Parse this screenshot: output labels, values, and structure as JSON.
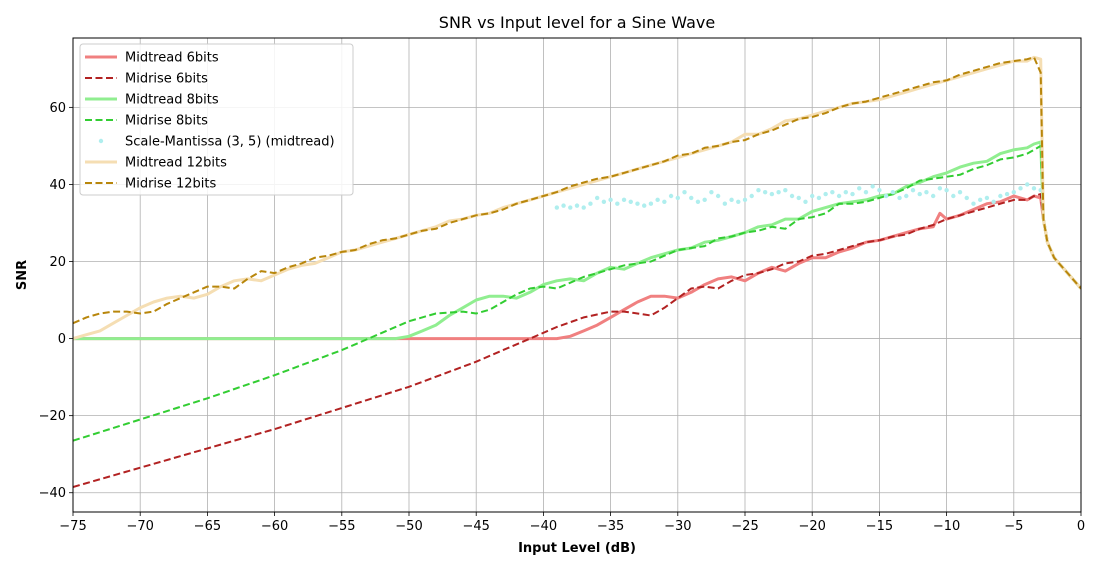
{
  "chart_data": {
    "type": "line",
    "title": "SNR vs Input level for a Sine Wave",
    "xlabel": "Input Level (dB)",
    "ylabel": "SNR",
    "xlim": [
      -75,
      0
    ],
    "ylim": [
      -45,
      78
    ],
    "xticks": [
      -75,
      -70,
      -65,
      -60,
      -55,
      -50,
      -45,
      -40,
      -35,
      -30,
      -25,
      -20,
      -15,
      -10,
      -5,
      0
    ],
    "xtick_labels": [
      "−75",
      "−70",
      "−65",
      "−60",
      "−55",
      "−50",
      "−45",
      "−40",
      "−35",
      "−30",
      "−25",
      "−20",
      "−15",
      "−10",
      "−5",
      "0"
    ],
    "yticks": [
      -40,
      -20,
      0,
      20,
      40,
      60
    ],
    "ytick_labels": [
      "−40",
      "−20",
      "0",
      "20",
      "40",
      "60"
    ],
    "grid": true,
    "legend_position": "top-left",
    "series": [
      {
        "name": "Midtread 6bits",
        "color": "#f08080",
        "style": "solid",
        "x": [
          -75,
          -60,
          -45,
          -40,
          -39,
          -38,
          -37,
          -36,
          -35,
          -34,
          -33,
          -32,
          -31,
          -30,
          -29,
          -28,
          -27,
          -26,
          -25,
          -24,
          -23,
          -22,
          -21,
          -20,
          -19,
          -18,
          -17,
          -16,
          -15,
          -14,
          -13,
          -12,
          -11,
          -10.5,
          -10,
          -9,
          -8,
          -7,
          -6,
          -5,
          -4,
          -3.5,
          -3,
          -2.8,
          -2.5,
          -2,
          -1.5,
          -1,
          -0.5,
          0
        ],
        "y": [
          0,
          0,
          0,
          0,
          0,
          0.6,
          2,
          3.5,
          5.5,
          7.5,
          9.5,
          11,
          11,
          10.5,
          12,
          14,
          15.5,
          16,
          15,
          17,
          18.5,
          17.5,
          19.5,
          21,
          21,
          22.5,
          23.5,
          25,
          25.5,
          26.5,
          27.5,
          28.5,
          29,
          32.5,
          31,
          32,
          33.5,
          35,
          35.5,
          37,
          36,
          37,
          36.5,
          31,
          25,
          21,
          19,
          17,
          15,
          13
        ]
      },
      {
        "name": "Midrise 6bits",
        "color": "#b22222",
        "style": "dashed",
        "x": [
          -75,
          -70,
          -65,
          -60,
          -55,
          -50,
          -45,
          -43,
          -41,
          -39,
          -37,
          -35,
          -34,
          -33,
          -32,
          -31,
          -30,
          -29,
          -28,
          -27,
          -26,
          -25,
          -24,
          -23,
          -22,
          -21,
          -20,
          -19,
          -18,
          -17,
          -16,
          -15,
          -14,
          -13,
          -12,
          -11,
          -10,
          -9,
          -8,
          -7,
          -6,
          -5,
          -4,
          -3.5,
          -3,
          -2.8,
          -2.5,
          -2,
          -1.5,
          -1,
          -0.5,
          0
        ],
        "y": [
          -38.5,
          -33.5,
          -28.5,
          -23.5,
          -18,
          -12.5,
          -6,
          -3,
          0,
          3,
          5.5,
          7,
          7,
          6.5,
          6,
          8,
          10.5,
          13,
          13.5,
          13,
          15,
          16.5,
          17,
          18,
          19.5,
          20,
          21.5,
          22,
          23,
          24,
          25,
          25.5,
          26.5,
          27,
          28.5,
          29.5,
          31,
          32,
          33,
          34,
          35,
          36,
          36,
          37,
          37.5,
          31,
          25,
          21,
          19,
          17,
          15,
          13
        ]
      },
      {
        "name": "Midtread 8bits",
        "color": "#90ee90",
        "style": "solid",
        "x": [
          -75,
          -51,
          -50,
          -49,
          -48,
          -47,
          -46,
          -45,
          -44,
          -43,
          -42,
          -41,
          -40,
          -39,
          -38,
          -37,
          -36,
          -35,
          -34,
          -33,
          -32,
          -31,
          -30,
          -29,
          -28,
          -27,
          -26,
          -25,
          -24,
          -23,
          -22,
          -21,
          -20,
          -19,
          -18,
          -17,
          -16,
          -15,
          -14,
          -13,
          -12,
          -11,
          -10,
          -9,
          -8,
          -7,
          -6,
          -5,
          -4,
          -3.5,
          -3,
          -2.8,
          -2.5,
          -2,
          -1.5,
          -1,
          -0.5,
          0
        ],
        "y": [
          0,
          0,
          0.6,
          2,
          3.5,
          6,
          8,
          10,
          11,
          11,
          10.5,
          12,
          14,
          15,
          15.5,
          15,
          17,
          18.5,
          18,
          19.5,
          21,
          22,
          23,
          23.5,
          25,
          25.5,
          26.5,
          27.5,
          29,
          29.5,
          31,
          31,
          33,
          34,
          35,
          35.5,
          36,
          37,
          37.5,
          39.5,
          40.5,
          42,
          43,
          44.5,
          45.5,
          46,
          48,
          49,
          49.5,
          50.5,
          51,
          31,
          25,
          21,
          19,
          17,
          15,
          13
        ]
      },
      {
        "name": "Midrise 8bits",
        "color": "#32cd32",
        "style": "dashed",
        "x": [
          -75,
          -70,
          -65,
          -60,
          -55,
          -50,
          -48,
          -46,
          -45,
          -44,
          -43,
          -42,
          -41,
          -40,
          -39,
          -38,
          -37,
          -36,
          -35,
          -34,
          -33,
          -32,
          -31,
          -30,
          -29,
          -28,
          -27,
          -26,
          -25,
          -24,
          -23,
          -22,
          -21,
          -20,
          -19,
          -18,
          -17,
          -16,
          -15,
          -14,
          -13,
          -12,
          -11,
          -10,
          -9,
          -8,
          -7,
          -6,
          -5,
          -4,
          -3.5,
          -3,
          -2.8,
          -2.5,
          -2,
          -1.5,
          -1,
          -0.5,
          0
        ],
        "y": [
          -26.5,
          -21,
          -15.5,
          -9.5,
          -3,
          4.5,
          6.5,
          7,
          6.5,
          7.5,
          9.5,
          11.5,
          13,
          13.5,
          13,
          14.5,
          16,
          17,
          18,
          19,
          19.5,
          20,
          21.5,
          23,
          23.5,
          24,
          26,
          26.5,
          27.5,
          28,
          29,
          28.5,
          31,
          31.5,
          32.5,
          35,
          35,
          35.5,
          36.5,
          37.5,
          39,
          41,
          41.5,
          42,
          42.5,
          44,
          45,
          46.5,
          47,
          48,
          49,
          50,
          31,
          25,
          21,
          19,
          17,
          15,
          13
        ]
      },
      {
        "name": "Scale-Mantissa (3, 5) (midtread)",
        "color": "#afeeee",
        "style": "dots",
        "x": [
          -39,
          -38.5,
          -38,
          -37.5,
          -37,
          -36.5,
          -36,
          -35.5,
          -35,
          -34.5,
          -34,
          -33.5,
          -33,
          -32.5,
          -32,
          -31.5,
          -31,
          -30.5,
          -30,
          -29.5,
          -29,
          -28.5,
          -28,
          -27.5,
          -27,
          -26.5,
          -26,
          -25.5,
          -25,
          -24.5,
          -24,
          -23.5,
          -23,
          -22.5,
          -22,
          -21.5,
          -21,
          -20.5,
          -20,
          -19.5,
          -19,
          -18.5,
          -18,
          -17.5,
          -17,
          -16.5,
          -16,
          -15.5,
          -15,
          -14.5,
          -14,
          -13.5,
          -13,
          -12.5,
          -12,
          -11.5,
          -11,
          -10.5,
          -10,
          -9.5,
          -9,
          -8.5,
          -8,
          -7.5,
          -7,
          -6.5,
          -6,
          -5.5,
          -5,
          -4.5,
          -4,
          -3.5,
          -3
        ],
        "y": [
          34,
          34.5,
          34,
          34.5,
          34,
          35,
          36.5,
          35.5,
          36,
          35,
          36,
          35.5,
          35,
          34.5,
          35,
          36,
          35.5,
          37,
          36.5,
          38,
          36.5,
          35.5,
          36,
          38,
          37,
          35,
          36,
          35.5,
          36,
          37,
          38.5,
          38,
          37.5,
          38,
          38.5,
          37,
          36.5,
          35.5,
          37,
          36.5,
          37.5,
          38,
          37,
          38,
          37.5,
          39,
          38,
          39.5,
          38.5,
          37,
          38,
          36.5,
          37,
          38.5,
          37.5,
          38,
          37,
          39,
          38.5,
          37,
          38,
          36.5,
          35,
          36,
          36.5,
          35.5,
          37,
          37.5,
          38,
          39,
          40,
          39,
          38.5
        ]
      },
      {
        "name": "Midtread 12bits",
        "color": "#f5deb3",
        "style": "solid",
        "x": [
          -75,
          -74,
          -73,
          -72,
          -71,
          -70,
          -69,
          -68,
          -67,
          -66,
          -65,
          -64,
          -63,
          -62,
          -61,
          -60,
          -59,
          -58,
          -57,
          -56,
          -55,
          -54,
          -53,
          -52,
          -51,
          -50,
          -49,
          -48,
          -47,
          -46,
          -45,
          -44,
          -43,
          -42,
          -41,
          -40,
          -39,
          -38,
          -37,
          -36,
          -35,
          -34,
          -33,
          -32,
          -31,
          -30,
          -29,
          -28,
          -27,
          -26,
          -25,
          -24,
          -23,
          -22,
          -21,
          -20,
          -19,
          -18,
          -17,
          -16,
          -15,
          -14,
          -13,
          -12,
          -11,
          -10,
          -9,
          -8,
          -7,
          -6,
          -5,
          -4,
          -3.5,
          -3,
          -2.8,
          -2.5,
          -2,
          -1.5,
          -1,
          -0.5,
          0
        ],
        "y": [
          0,
          1,
          2,
          4,
          6,
          8,
          9.5,
          10.5,
          11,
          10.5,
          11.5,
          13.5,
          15,
          15.5,
          15,
          16.5,
          18,
          19,
          19.5,
          21,
          22.5,
          23,
          24,
          25,
          26,
          27,
          28,
          29,
          30.5,
          31,
          32,
          32.5,
          34,
          35,
          36,
          37,
          38,
          39,
          40,
          41,
          42,
          43,
          44,
          45,
          46,
          47,
          48,
          49,
          50,
          51,
          53,
          53,
          54.5,
          56.5,
          57,
          58,
          59,
          60,
          61,
          61.5,
          62,
          63,
          64,
          65,
          66,
          67,
          68,
          69,
          70,
          71,
          72,
          72,
          73,
          72.5,
          31,
          25,
          21,
          19,
          17,
          15,
          13
        ]
      },
      {
        "name": "Midrise 12bits",
        "color": "#b8860b",
        "style": "dashed",
        "x": [
          -75,
          -74,
          -73,
          -72,
          -71,
          -70,
          -69,
          -68,
          -67,
          -66,
          -65,
          -64,
          -63,
          -62,
          -61,
          -60,
          -59,
          -58,
          -57,
          -56,
          -55,
          -54,
          -53,
          -52,
          -51,
          -50,
          -49,
          -48,
          -47,
          -46,
          -45,
          -44,
          -43,
          -42,
          -41,
          -40,
          -39,
          -38,
          -37,
          -36,
          -35,
          -34,
          -33,
          -32,
          -31,
          -30,
          -29,
          -28,
          -27,
          -26,
          -25,
          -24,
          -23,
          -22,
          -21,
          -20,
          -19,
          -18,
          -17,
          -16,
          -15,
          -14,
          -13,
          -12,
          -11,
          -10,
          -9,
          -8,
          -7,
          -6,
          -5,
          -4,
          -3.5,
          -3,
          -2.8,
          -2.5,
          -2,
          -1.5,
          -1,
          -0.5,
          0
        ],
        "y": [
          4,
          5.5,
          6.5,
          7,
          7,
          6.5,
          7,
          9,
          10.5,
          12,
          13.5,
          13.5,
          13,
          15.5,
          17.5,
          17,
          18.5,
          19.5,
          21,
          21.5,
          22.5,
          23,
          24.5,
          25.5,
          26,
          27,
          28,
          28.5,
          30,
          31,
          32,
          32.5,
          33.5,
          35,
          36,
          37,
          38,
          39.5,
          40.5,
          41.5,
          42,
          43,
          44,
          45,
          46,
          47.5,
          48,
          49.5,
          50,
          51,
          51.5,
          53,
          54,
          55.5,
          57,
          57.5,
          58.5,
          60,
          61,
          61.5,
          62.5,
          63.5,
          64.5,
          65.5,
          66.5,
          67,
          68.5,
          69.5,
          70.5,
          71.5,
          72,
          72.5,
          73,
          69,
          31,
          25,
          21,
          19,
          17,
          15,
          13
        ]
      }
    ]
  }
}
